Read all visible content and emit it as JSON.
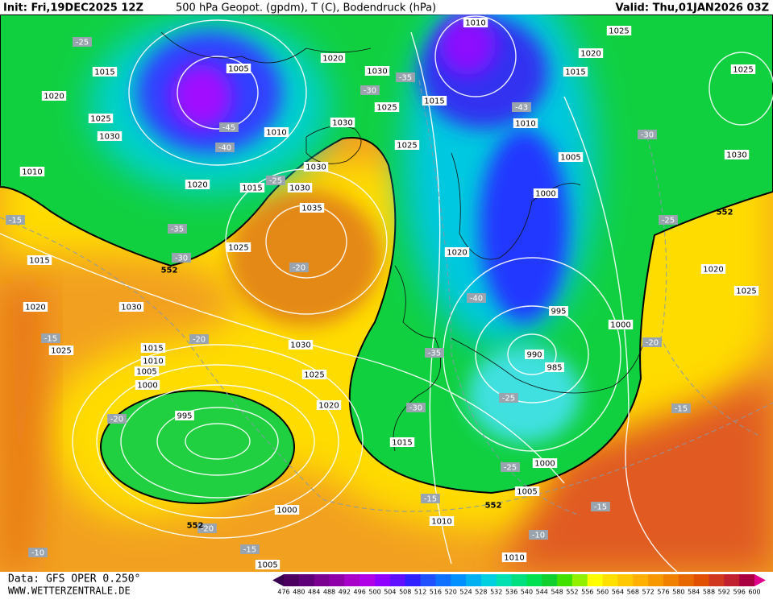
{
  "header": {
    "init": "Init: Fri,19DEC2025 12Z",
    "title": "500 hPa Geopot. (gpdm), T (C), Bodendruck (hPa)",
    "valid": "Valid: Thu,01JAN2026 03Z"
  },
  "footer": {
    "data_source": "Data: GFS OPER 0.250°",
    "website": "WWW.WETTERZENTRALE.DE"
  },
  "colorbar": {
    "labels": [
      476,
      480,
      484,
      488,
      492,
      496,
      500,
      504,
      508,
      512,
      516,
      520,
      524,
      528,
      532,
      536,
      540,
      544,
      548,
      552,
      556,
      560,
      564,
      568,
      572,
      576,
      580,
      584,
      588,
      592,
      596,
      600
    ]
  },
  "map": {
    "isobar_labels": [
      "1010",
      "1025",
      "1020",
      "1015",
      "1025",
      "1015",
      "1020",
      "1025",
      "1030",
      "1005",
      "1020",
      "1030",
      "1025",
      "1015",
      "1010",
      "1030",
      "1010",
      "1025",
      "1005",
      "1030",
      "1010",
      "1030",
      "1020",
      "1015",
      "1030",
      "1000",
      "1035",
      "1025",
      "1020",
      "1015",
      "1020",
      "1025",
      "1020",
      "1030",
      "995",
      "1000",
      "1025",
      "1015",
      "1030",
      "990",
      "1010",
      "985",
      "1005",
      "1025",
      "1000",
      "1020",
      "995",
      "1015",
      "1000",
      "1005",
      "1000",
      "1010",
      "1010",
      "1005"
    ],
    "temperature_labels": [
      "-25",
      "-35",
      "-30",
      "-43",
      "-45",
      "-40",
      "-30",
      "-25",
      "-15",
      "-35",
      "-25",
      "-30",
      "-20",
      "-40",
      "-15",
      "-20",
      "-20",
      "-35",
      "-25",
      "-30",
      "-15",
      "-20",
      "-25",
      "-15",
      "-15",
      "-10",
      "-20",
      "-10",
      "-15"
    ],
    "height_labels": [
      "552",
      "552",
      "552",
      "552"
    ]
  }
}
